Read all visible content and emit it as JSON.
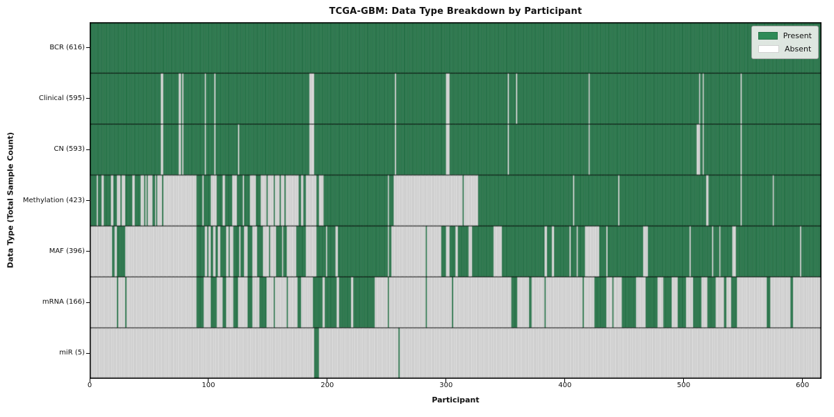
{
  "chart_data": {
    "type": "heatmap",
    "title": "TCGA-GBM: Data Type Breakdown by Participant",
    "xlabel": "Participant",
    "ylabel": "Data Type (Total Sample Count)",
    "x_ticks": [
      0,
      100,
      200,
      300,
      400,
      500,
      600
    ],
    "xlim": [
      0,
      616
    ],
    "n_participants": 616,
    "grid": false,
    "legend_position": "upper right",
    "legend": [
      {
        "label": "Present",
        "color": "#2e8b57"
      },
      {
        "label": "Absent",
        "color": "#ffffff"
      }
    ],
    "colors": {
      "present": "#2e8b57",
      "present_edge": "rgba(15,50,30,0.55)",
      "absent": "#ffffff",
      "absent_edge": "rgba(105,105,105,0.6)",
      "row_separator": "rgba(0,0,0,0.85)",
      "plot_border": "#000000"
    },
    "rows": [
      {
        "data_type": "BCR",
        "total": 616,
        "label": "BCR (616)",
        "present_ranges": [
          [
            0,
            616
          ]
        ]
      },
      {
        "data_type": "Clinical",
        "total": 595,
        "label": "Clinical (595)",
        "present_ranges": [
          [
            0,
            60
          ],
          [
            62,
            75
          ],
          [
            77,
            78
          ],
          [
            79,
            97
          ],
          [
            98,
            105
          ],
          [
            106,
            185
          ],
          [
            189,
            257
          ],
          [
            258,
            300
          ],
          [
            303,
            352
          ],
          [
            353,
            359
          ],
          [
            360,
            420
          ],
          [
            421,
            513
          ],
          [
            514,
            516
          ],
          [
            517,
            548
          ],
          [
            549,
            616
          ]
        ]
      },
      {
        "data_type": "CN",
        "total": 593,
        "label": "CN (593)",
        "present_ranges": [
          [
            0,
            60
          ],
          [
            62,
            75
          ],
          [
            77,
            78
          ],
          [
            79,
            97
          ],
          [
            98,
            105
          ],
          [
            106,
            125
          ],
          [
            126,
            185
          ],
          [
            189,
            257
          ],
          [
            258,
            300
          ],
          [
            303,
            352
          ],
          [
            353,
            420
          ],
          [
            421,
            511
          ],
          [
            514,
            516
          ],
          [
            517,
            548
          ],
          [
            549,
            616
          ]
        ]
      },
      {
        "data_type": "Methylation",
        "total": 423,
        "label": "Methylation (423)",
        "present_ranges": [
          [
            1,
            6
          ],
          [
            7,
            10
          ],
          [
            12,
            18
          ],
          [
            20,
            23
          ],
          [
            26,
            27
          ],
          [
            30,
            36
          ],
          [
            38,
            43
          ],
          [
            46,
            47
          ],
          [
            48,
            49
          ],
          [
            53,
            55
          ],
          [
            56,
            57
          ],
          [
            61,
            62
          ],
          [
            90,
            95
          ],
          [
            96,
            102
          ],
          [
            107,
            112
          ],
          [
            114,
            120
          ],
          [
            124,
            129
          ],
          [
            130,
            135
          ],
          [
            140,
            144
          ],
          [
            149,
            150
          ],
          [
            155,
            156
          ],
          [
            160,
            161
          ],
          [
            164,
            165
          ],
          [
            176,
            178
          ],
          [
            180,
            182
          ],
          [
            191,
            193
          ],
          [
            197,
            251
          ],
          [
            252,
            256
          ],
          [
            314,
            315
          ],
          [
            327,
            407
          ],
          [
            408,
            445
          ],
          [
            446,
            519
          ],
          [
            521,
            548
          ],
          [
            549,
            575
          ],
          [
            576,
            616
          ]
        ]
      },
      {
        "data_type": "MAF",
        "total": 396,
        "label": "MAF (396)",
        "present_ranges": [
          [
            19,
            21
          ],
          [
            23,
            30
          ],
          [
            90,
            97
          ],
          [
            99,
            100
          ],
          [
            102,
            104
          ],
          [
            106,
            108
          ],
          [
            110,
            115
          ],
          [
            117,
            118
          ],
          [
            121,
            126
          ],
          [
            127,
            130
          ],
          [
            133,
            137
          ],
          [
            141,
            146
          ],
          [
            151,
            152
          ],
          [
            157,
            162
          ],
          [
            163,
            166
          ],
          [
            174,
            182
          ],
          [
            191,
            199
          ],
          [
            200,
            207
          ],
          [
            209,
            251
          ],
          [
            252,
            254
          ],
          [
            283,
            284
          ],
          [
            296,
            300
          ],
          [
            303,
            308
          ],
          [
            310,
            319
          ],
          [
            322,
            340
          ],
          [
            347,
            383
          ],
          [
            385,
            389
          ],
          [
            391,
            404
          ],
          [
            405,
            410
          ],
          [
            411,
            417
          ],
          [
            429,
            435
          ],
          [
            436,
            466
          ],
          [
            470,
            505
          ],
          [
            506,
            524
          ],
          [
            525,
            530
          ],
          [
            531,
            541
          ],
          [
            544,
            598
          ],
          [
            599,
            616
          ]
        ]
      },
      {
        "data_type": "mRNA",
        "total": 166,
        "label": "mRNA (166)",
        "present_ranges": [
          [
            23,
            24
          ],
          [
            30,
            31
          ],
          [
            90,
            96
          ],
          [
            102,
            107
          ],
          [
            112,
            115
          ],
          [
            121,
            125
          ],
          [
            133,
            137
          ],
          [
            143,
            149
          ],
          [
            155,
            156
          ],
          [
            166,
            167
          ],
          [
            175,
            178
          ],
          [
            188,
            196
          ],
          [
            198,
            208
          ],
          [
            210,
            220
          ],
          [
            222,
            240
          ],
          [
            251,
            252
          ],
          [
            283,
            284
          ],
          [
            305,
            306
          ],
          [
            355,
            360
          ],
          [
            370,
            372
          ],
          [
            383,
            384
          ],
          [
            415,
            416
          ],
          [
            425,
            435
          ],
          [
            440,
            441
          ],
          [
            448,
            460
          ],
          [
            468,
            478
          ],
          [
            483,
            490
          ],
          [
            495,
            502
          ],
          [
            508,
            515
          ],
          [
            520,
            527
          ],
          [
            534,
            536
          ],
          [
            540,
            545
          ],
          [
            570,
            573
          ],
          [
            590,
            592
          ]
        ]
      },
      {
        "data_type": "miR",
        "total": 5,
        "label": "miR (5)",
        "present_ranges": [
          [
            189,
            193
          ],
          [
            260,
            261
          ]
        ]
      }
    ]
  },
  "layout_text": {
    "note": ""
  }
}
